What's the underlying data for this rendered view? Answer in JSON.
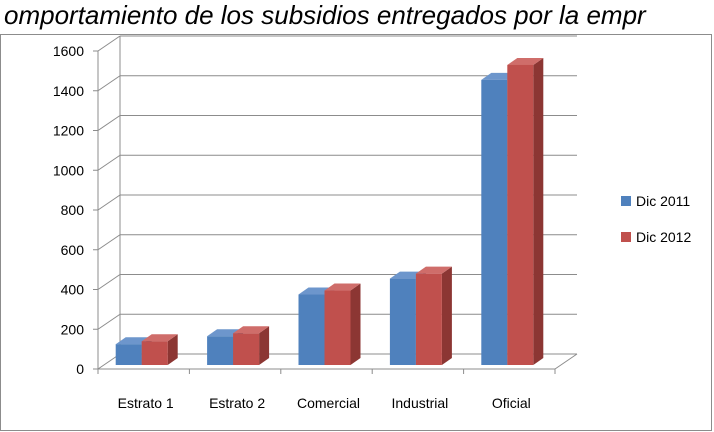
{
  "chart_data": {
    "type": "bar",
    "title": "omportamiento de los subsidios entregados por la empr",
    "categories": [
      "Estrato 1",
      "Estrato 2",
      "Comercial",
      "Industrial",
      "Oficial"
    ],
    "series": [
      {
        "name": "Dic 2011",
        "values": [
          160,
          200,
          410,
          490,
          1490
        ],
        "color": "#4f81bd",
        "side": "#3a5f8c",
        "top": "#6d96cc"
      },
      {
        "name": "Dic 2012",
        "values": [
          175,
          215,
          430,
          515,
          1565
        ],
        "color": "#c0504d",
        "side": "#8c3633",
        "top": "#cf6d6a"
      }
    ],
    "ylim": [
      0,
      1600
    ],
    "yticks": [
      "0",
      "200",
      "400",
      "600",
      "800",
      "1000",
      "1200",
      "1400",
      "1600"
    ],
    "grid": true,
    "legend": "right"
  }
}
